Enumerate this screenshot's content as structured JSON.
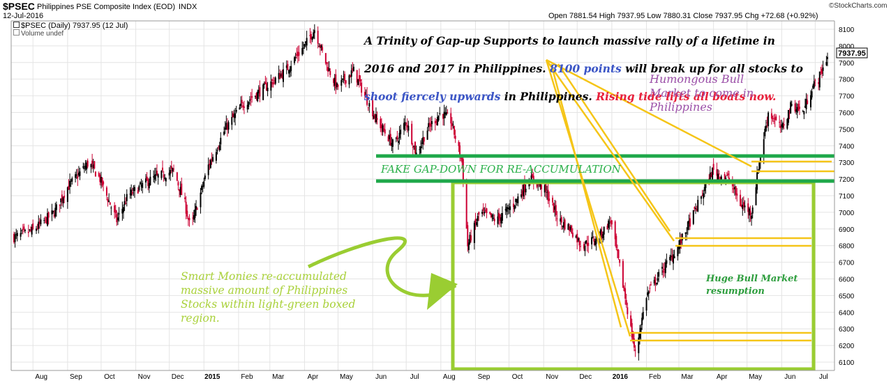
{
  "header": {
    "symbol": "$PSEC",
    "name": "Philippines PSE Composite Index (EOD)",
    "exchange": "INDX",
    "date": "12-Jul-2016",
    "ohlc": "Open 7881.54  High 7937.95  Low 7880.31  Close 7937.95  Chg +72.68 (+0.92%)",
    "brand": "©StockCharts.com",
    "series_label": "$PSEC (Daily) 7937.95 (12 Jul)",
    "volume_label": "Volume undef"
  },
  "colors": {
    "up": "#000000",
    "down": "#cc0033",
    "grid": "#e4e4e4",
    "support_green": "#1fa84a",
    "box_green": "#9acd32",
    "arrow_yellow": "#f5c518",
    "annotation_blue": "#3b55c6",
    "annotation_red": "#e8213c",
    "annotation_purple": "#9b4fa8",
    "annotation_lightgreen": "#a9d13a",
    "annotation_green": "#2e9e3e"
  },
  "annotations": {
    "main_line1_a": "A Trinity of Gap-up Supports to launch massive rally of a lifetime in",
    "main_line2_a": "2016 and 2017 in Philippines.",
    "main_line2_b": "8100 points",
    "main_line2_c": "will break up for all stocks to",
    "main_line3_a": "shoot fiercely upwards",
    "main_line3_b": "in Philippines.",
    "main_line3_c": "Rising tide lifts all boats now.",
    "humongous": "Humongous Bull\nMarket to come in\nPhilippines",
    "fake_gap": "FAKE GAP-DOWN FOR RE-ACCUMULATION",
    "smart_monies": "Smart Monies re-accumulated\nmassive amount of Philippines\nStocks within light-green boxed\nregion.",
    "huge_bull": "Huge Bull Market\nresumption"
  },
  "chart_data": {
    "type": "candlestick",
    "title": "$PSEC (Daily) 7937.95 (12 Jul)",
    "ylim": [
      6050,
      8150
    ],
    "y_ticks": [
      6100,
      6200,
      6300,
      6400,
      6500,
      6600,
      6700,
      6800,
      6900,
      7000,
      7100,
      7200,
      7300,
      7400,
      7500,
      7600,
      7700,
      7800,
      7900,
      8000,
      8100
    ],
    "x_range": [
      "2014-07-15",
      "2016-07-12"
    ],
    "x_ticks": [
      "Aug",
      "Sep",
      "Oct",
      "Nov",
      "Dec",
      "2015",
      "Feb",
      "Mar",
      "Apr",
      "May",
      "Jun",
      "Jul",
      "Aug",
      "Sep",
      "Oct",
      "Nov",
      "Dec",
      "2016",
      "Feb",
      "Mar",
      "Apr",
      "May",
      "Jun",
      "Jul"
    ],
    "x_tick_dates": [
      "2014-08-01",
      "2014-09-01",
      "2014-10-01",
      "2014-11-01",
      "2014-12-01",
      "2015-01-01",
      "2015-02-01",
      "2015-03-01",
      "2015-04-01",
      "2015-05-01",
      "2015-06-01",
      "2015-07-01",
      "2015-08-01",
      "2015-09-01",
      "2015-10-01",
      "2015-11-01",
      "2015-12-01",
      "2016-01-01",
      "2016-02-01",
      "2016-03-01",
      "2016-04-01",
      "2016-05-01",
      "2016-06-01",
      "2016-07-01"
    ],
    "x_tick_bold": [
      "2015",
      "2016"
    ],
    "last_value": "7937.95",
    "close_path": [
      [
        "2014-07-15",
        6850
      ],
      [
        "2014-08-01",
        6890
      ],
      [
        "2014-08-20",
        7000
      ],
      [
        "2014-09-01",
        7150
      ],
      [
        "2014-09-20",
        7300
      ],
      [
        "2014-09-30",
        7200
      ],
      [
        "2014-10-15",
        6950
      ],
      [
        "2014-10-25",
        7100
      ],
      [
        "2014-11-15",
        7200
      ],
      [
        "2014-12-05",
        7250
      ],
      [
        "2014-12-15",
        7050
      ],
      [
        "2014-12-20",
        6900
      ],
      [
        "2015-01-05",
        7280
      ],
      [
        "2015-01-20",
        7500
      ],
      [
        "2015-02-05",
        7650
      ],
      [
        "2015-02-25",
        7750
      ],
      [
        "2015-03-15",
        7850
      ],
      [
        "2015-04-01",
        8000
      ],
      [
        "2015-04-10",
        8100
      ],
      [
        "2015-04-20",
        7900
      ],
      [
        "2015-04-30",
        7750
      ],
      [
        "2015-05-15",
        7850
      ],
      [
        "2015-05-25",
        7700
      ],
      [
        "2015-06-05",
        7550
      ],
      [
        "2015-06-20",
        7400
      ],
      [
        "2015-07-01",
        7550
      ],
      [
        "2015-07-10",
        7350
      ],
      [
        "2015-07-20",
        7500
      ],
      [
        "2015-08-01",
        7600
      ],
      [
        "2015-08-10",
        7550
      ],
      [
        "2015-08-20",
        7300
      ],
      [
        "2015-08-25",
        6800
      ],
      [
        "2015-09-05",
        7000
      ],
      [
        "2015-09-20",
        6950
      ],
      [
        "2015-10-05",
        7050
      ],
      [
        "2015-10-20",
        7200
      ],
      [
        "2015-11-01",
        7150
      ],
      [
        "2015-11-15",
        6950
      ],
      [
        "2015-11-25",
        6900
      ],
      [
        "2015-12-05",
        6800
      ],
      [
        "2015-12-20",
        6850
      ],
      [
        "2015-12-31",
        6950
      ],
      [
        "2016-01-10",
        6600
      ],
      [
        "2016-01-18",
        6300
      ],
      [
        "2016-01-22",
        6150
      ],
      [
        "2016-02-01",
        6500
      ],
      [
        "2016-02-15",
        6650
      ],
      [
        "2016-03-01",
        6800
      ],
      [
        "2016-03-15",
        7000
      ],
      [
        "2016-03-31",
        7250
      ],
      [
        "2016-04-15",
        7200
      ],
      [
        "2016-04-25",
        7050
      ],
      [
        "2016-05-05",
        7000
      ],
      [
        "2016-05-12",
        7300
      ],
      [
        "2016-05-20",
        7600
      ],
      [
        "2016-06-01",
        7500
      ],
      [
        "2016-06-10",
        7650
      ],
      [
        "2016-06-20",
        7600
      ],
      [
        "2016-06-28",
        7750
      ],
      [
        "2016-07-04",
        7800
      ],
      [
        "2016-07-12",
        7938
      ]
    ]
  }
}
